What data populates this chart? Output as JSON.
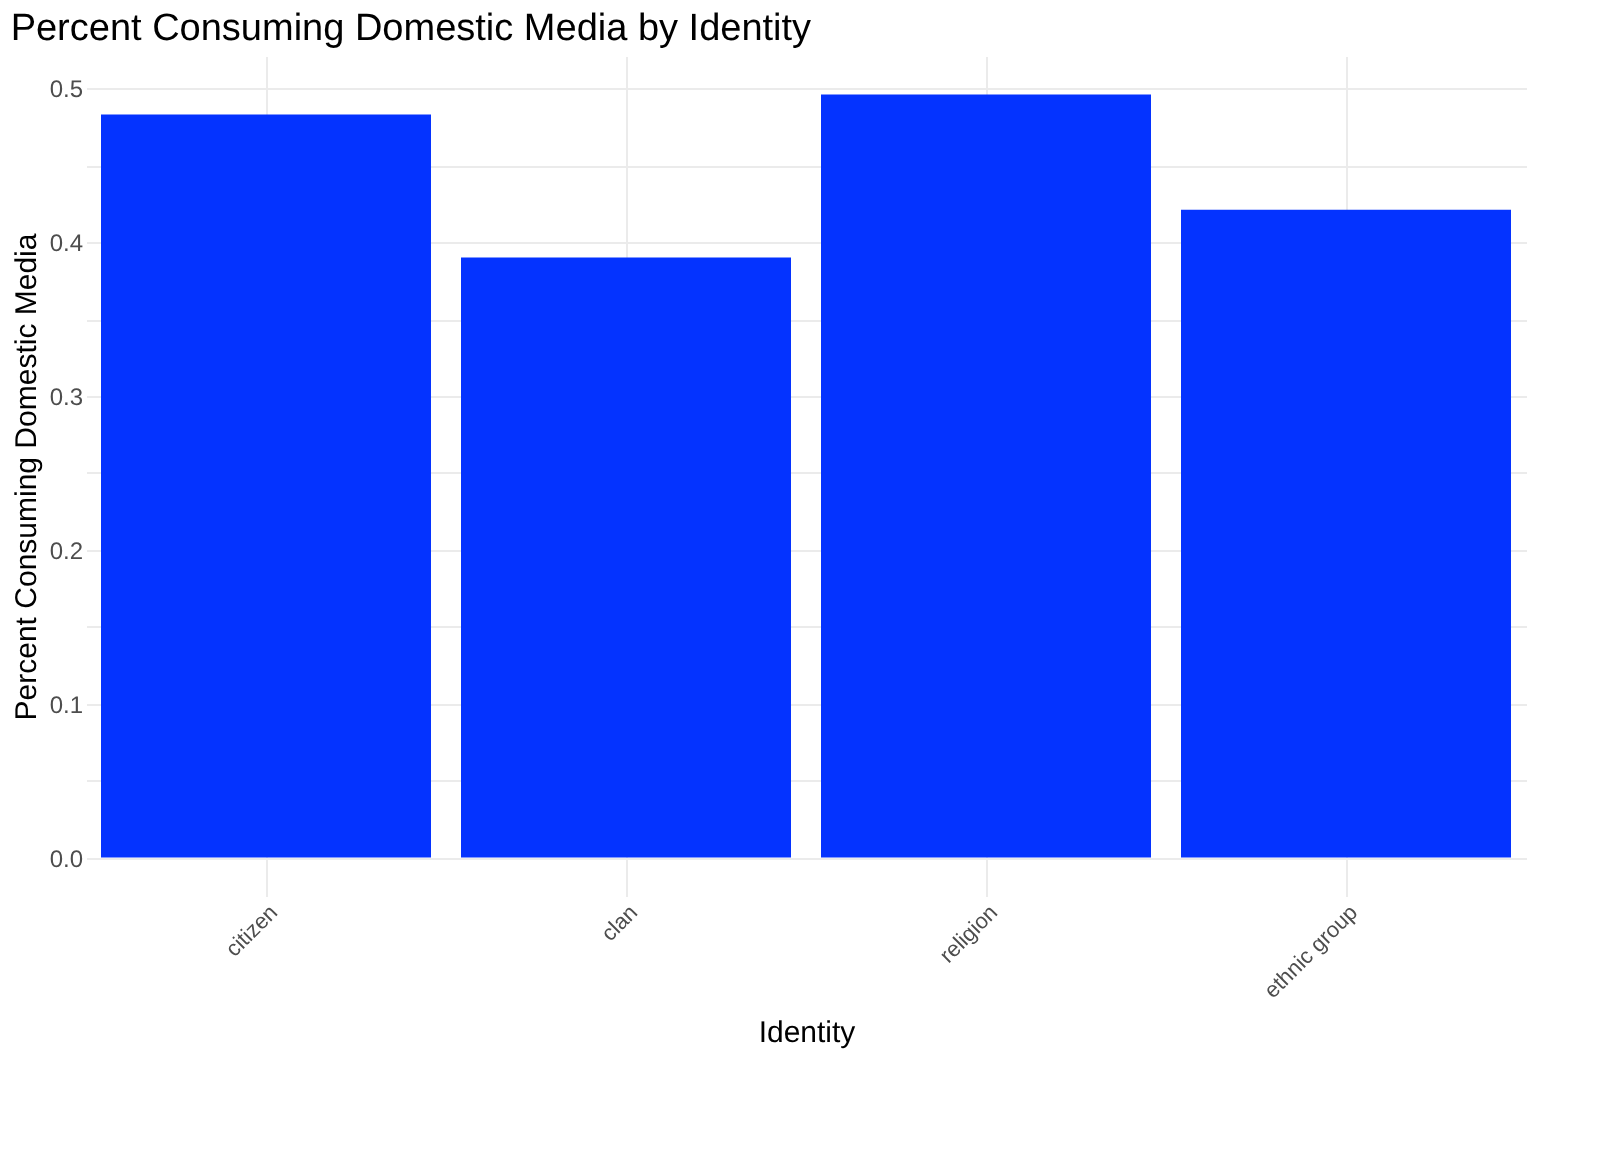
{
  "chart_data": {
    "type": "bar",
    "title": "Percent Consuming Domestic Media by Identity",
    "xlabel": "Identity",
    "ylabel": "Percent Consuming Domestic Media",
    "categories": [
      "citizen",
      "clan",
      "religion",
      "ethnic group"
    ],
    "values": [
      0.483,
      0.39,
      0.496,
      0.421
    ],
    "color": "#0433ff",
    "ylim": [
      -0.025,
      0.521
    ],
    "yticks": [
      {
        "value": 0,
        "label": "0.0"
      },
      {
        "value": 0.05,
        "label": null
      },
      0.1,
      {
        "value": 0.15,
        "label": null
      },
      0.2,
      {
        "value": 0.25,
        "label": null
      },
      0.3,
      {
        "value": 0.35,
        "label": null
      },
      0.4,
      {
        "value": 0.45,
        "label": null
      },
      0.5
    ],
    "grid": true
  }
}
